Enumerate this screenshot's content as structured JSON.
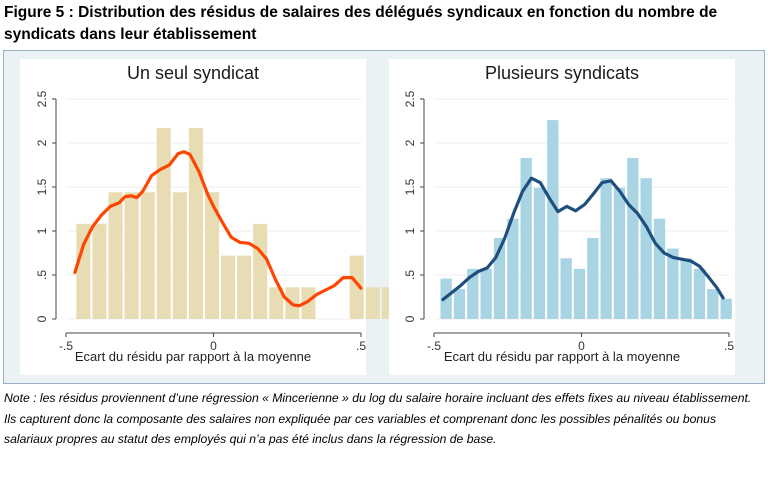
{
  "figure": {
    "title": "Figure 5 : Distribution des résidus de salaires des délégués syndicaux en fonction du nombre de syndicats dans leur établissement",
    "note": "Note : les résidus proviennent d’une régression « Mincerienne » du log du salaire horaire incluant des effets fixes au niveau établissement. Ils capturent donc la composante des salaires non expliquée par ces variables et comprenant donc les possibles pénalités ou bonus salariaux propres au statut des employés qui n’a pas été inclus dans la régression de base."
  },
  "chart_data": [
    {
      "type": "bar",
      "title": "Un seul syndicat",
      "xlabel": "Ecart du résidu par rapport à la moyenne",
      "ylabel": "",
      "xlim": [
        -0.5,
        0.5
      ],
      "ylim": [
        0,
        2.5
      ],
      "xticks": [
        -0.5,
        0,
        0.5
      ],
      "xtick_labels": [
        "-.5",
        "0",
        ".5"
      ],
      "yticks": [
        0,
        0.5,
        1,
        1.5,
        2,
        2.5
      ],
      "ytick_labels": [
        "0",
        ".5",
        "1",
        "1.5",
        "2",
        "2.5"
      ],
      "grid": true,
      "colors": {
        "bars": "#e8dcb2",
        "line": "#ff4500"
      },
      "bins": {
        "start": -0.465,
        "width": 0.0545,
        "values": [
          1.08,
          1.08,
          1.44,
          1.44,
          1.44,
          2.17,
          1.44,
          2.17,
          1.44,
          0.72,
          0.72,
          1.08,
          0.36,
          0.36,
          0.36,
          0,
          0,
          0.72,
          0.36,
          0.36
        ]
      },
      "density": {
        "x": [
          -0.47,
          -0.44,
          -0.41,
          -0.38,
          -0.35,
          -0.32,
          -0.3,
          -0.28,
          -0.26,
          -0.24,
          -0.21,
          -0.18,
          -0.15,
          -0.12,
          -0.1,
          -0.08,
          -0.05,
          -0.02,
          0.0,
          0.03,
          0.06,
          0.09,
          0.12,
          0.15,
          0.18,
          0.21,
          0.24,
          0.27,
          0.29,
          0.32,
          0.35,
          0.38,
          0.41,
          0.44,
          0.47,
          0.5
        ],
        "y": [
          0.53,
          0.85,
          1.05,
          1.18,
          1.28,
          1.32,
          1.39,
          1.4,
          1.38,
          1.45,
          1.63,
          1.7,
          1.75,
          1.88,
          1.9,
          1.87,
          1.68,
          1.42,
          1.28,
          1.1,
          0.93,
          0.87,
          0.86,
          0.8,
          0.68,
          0.45,
          0.25,
          0.16,
          0.15,
          0.2,
          0.28,
          0.33,
          0.38,
          0.47,
          0.47,
          0.35
        ]
      }
    },
    {
      "type": "bar",
      "title": "Plusieurs syndicats",
      "xlabel": "Ecart du résidu par rapport à la moyenne",
      "ylabel": "",
      "xlim": [
        -0.5,
        0.5
      ],
      "ylim": [
        0,
        2.5
      ],
      "xticks": [
        -0.5,
        0,
        0.5
      ],
      "xtick_labels": [
        "-.5",
        "0",
        ".5"
      ],
      "yticks": [
        0,
        0.5,
        1,
        1.5,
        2,
        2.5
      ],
      "ytick_labels": [
        "0",
        ".5",
        "1",
        "1.5",
        "2",
        "2.5"
      ],
      "grid": true,
      "colors": {
        "bars": "#a9d4e4",
        "line": "#1e4f7e"
      },
      "bins": {
        "start": -0.478,
        "width": 0.0452,
        "values": [
          0.46,
          0.34,
          0.57,
          0.57,
          0.92,
          1.14,
          1.83,
          1.49,
          2.26,
          0.69,
          0.57,
          0.92,
          1.6,
          1.49,
          1.83,
          1.6,
          1.14,
          0.8,
          0.69,
          0.57,
          0.34,
          0.23
        ]
      },
      "density": {
        "x": [
          -0.47,
          -0.44,
          -0.41,
          -0.38,
          -0.35,
          -0.32,
          -0.29,
          -0.26,
          -0.23,
          -0.2,
          -0.17,
          -0.14,
          -0.11,
          -0.08,
          -0.05,
          -0.02,
          0.01,
          0.04,
          0.07,
          0.1,
          0.13,
          0.16,
          0.19,
          0.22,
          0.25,
          0.28,
          0.31,
          0.34,
          0.37,
          0.4,
          0.43,
          0.46,
          0.48
        ],
        "y": [
          0.22,
          0.3,
          0.38,
          0.47,
          0.54,
          0.58,
          0.7,
          0.92,
          1.2,
          1.45,
          1.6,
          1.55,
          1.38,
          1.22,
          1.28,
          1.23,
          1.3,
          1.42,
          1.55,
          1.57,
          1.45,
          1.3,
          1.2,
          1.05,
          0.86,
          0.75,
          0.7,
          0.68,
          0.66,
          0.6,
          0.48,
          0.35,
          0.24
        ]
      }
    }
  ]
}
